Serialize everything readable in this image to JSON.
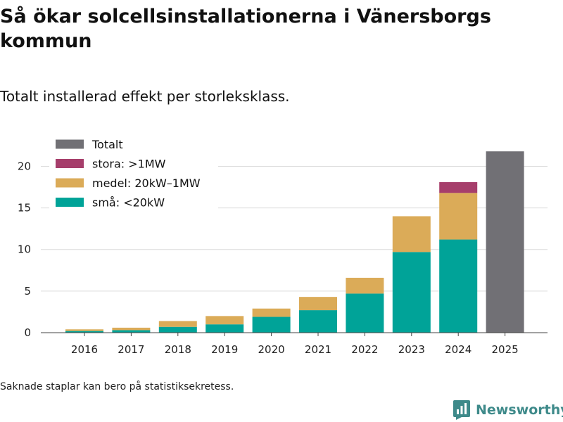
{
  "header": {
    "title": "Så ökar solcellsinstallationerna i Vänersborgs kommun",
    "subtitle": "Totalt installerad effekt per storleksklass."
  },
  "footer": {
    "note": "Saknade staplar kan bero på statistiksekretess.",
    "brand": "Newsworthy"
  },
  "chart_data": {
    "type": "bar",
    "stacked": true,
    "title": "Så ökar solcellsinstallationerna i Vänersborgs kommun",
    "subtitle": "Totalt installerad effekt per storleksklass.",
    "xlabel": "",
    "ylabel": "",
    "ylim": [
      0,
      23
    ],
    "yticks": [
      0,
      5,
      10,
      15,
      20
    ],
    "grid": "horizontal",
    "legend_position": "top-left",
    "categories": [
      "2016",
      "2017",
      "2018",
      "2019",
      "2020",
      "2021",
      "2022",
      "2023",
      "2024",
      "2025"
    ],
    "series": [
      {
        "name": "små: <20kW",
        "color": "#00a398",
        "values": [
          0.2,
          0.3,
          0.7,
          1.0,
          1.9,
          2.7,
          4.7,
          9.7,
          11.2,
          null
        ]
      },
      {
        "name": "medel: 20kW–1MW",
        "color": "#dbab58",
        "values": [
          0.2,
          0.3,
          0.7,
          1.0,
          1.0,
          1.6,
          1.9,
          4.3,
          5.6,
          null
        ]
      },
      {
        "name": "stora: >1MW",
        "color": "#a63e6b",
        "values": [
          null,
          null,
          null,
          null,
          null,
          null,
          null,
          null,
          1.3,
          null
        ]
      },
      {
        "name": "Totalt",
        "color": "#717075",
        "values": [
          null,
          null,
          null,
          null,
          null,
          null,
          null,
          null,
          null,
          21.8
        ]
      }
    ],
    "legend_order": [
      "Totalt",
      "stora: >1MW",
      "medel: 20kW–1MW",
      "små: <20kW"
    ]
  }
}
